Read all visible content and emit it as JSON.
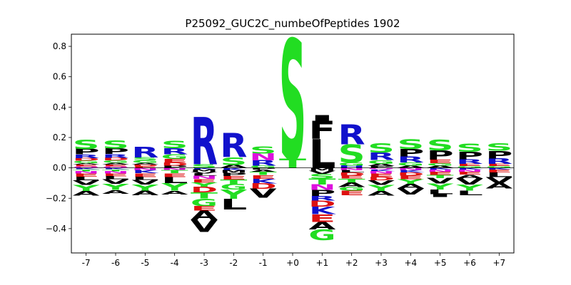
{
  "chart_data": {
    "type": "sequence-logo",
    "title": "P25092_GUC2C_numbeOfPeptides 1902",
    "xlabel": "",
    "ylabel": "",
    "ylim": [
      -0.56,
      0.88
    ],
    "yticks": [
      0.8,
      0.6,
      0.4,
      0.2,
      0.0,
      -0.2,
      -0.4
    ],
    "ytick_labels": [
      "0.8",
      "0.6",
      "0.4",
      "0.2",
      "0.0",
      "−0.2",
      "−0.4"
    ],
    "positions": [
      "-7",
      "-6",
      "-5",
      "-4",
      "-3",
      "-2",
      "-1",
      "+0",
      "+1",
      "+2",
      "+3",
      "+4",
      "+5",
      "+6",
      "+7"
    ],
    "grid": false,
    "colors": {
      "S": "#22dd22",
      "T": "#22dd22",
      "G": "#22dd22",
      "Y": "#22dd22",
      "C": "#22dd22",
      "R": "#1111cc",
      "K": "#1111cc",
      "H": "#1111cc",
      "D": "#dd1111",
      "E": "#dd1111",
      "N": "#dd11dd",
      "Q": "#dd11dd",
      "P": "#000000",
      "A": "#000000",
      "V": "#000000",
      "L": "#000000",
      "I": "#000000",
      "M": "#000000",
      "F": "#000000",
      "W": "#000000"
    },
    "stacks": [
      {
        "pos": "-7",
        "up": [
          [
            "Q",
            0.01
          ],
          [
            "E",
            0.012
          ],
          [
            "A",
            0.01
          ],
          [
            "G",
            0.015
          ],
          [
            "D",
            0.018
          ],
          [
            "R",
            0.025
          ],
          [
            "P",
            0.035
          ],
          [
            "S",
            0.06
          ]
        ],
        "down": [
          [
            "K",
            -0.01
          ],
          [
            "T",
            -0.012
          ],
          [
            "N",
            -0.015
          ],
          [
            "E",
            -0.02
          ],
          [
            "L",
            -0.025
          ],
          [
            "V",
            -0.03
          ],
          [
            "Y",
            -0.04
          ],
          [
            "A",
            -0.03
          ]
        ]
      },
      {
        "pos": "-6",
        "up": [
          [
            "Q",
            0.01
          ],
          [
            "E",
            0.012
          ],
          [
            "A",
            0.012
          ],
          [
            "G",
            0.015
          ],
          [
            "D",
            0.018
          ],
          [
            "R",
            0.025
          ],
          [
            "P",
            0.035
          ],
          [
            "S",
            0.055
          ]
        ],
        "down": [
          [
            "K",
            -0.01
          ],
          [
            "T",
            -0.012
          ],
          [
            "N",
            -0.015
          ],
          [
            "E",
            -0.018
          ],
          [
            "L",
            -0.02
          ],
          [
            "V",
            -0.03
          ],
          [
            "Y",
            -0.04
          ],
          [
            "A",
            -0.025
          ]
        ]
      },
      {
        "pos": "-5",
        "up": [
          [
            "E",
            0.01
          ],
          [
            "D",
            0.012
          ],
          [
            "A",
            0.012
          ],
          [
            "G",
            0.015
          ],
          [
            "S",
            0.02
          ],
          [
            "R",
            0.07
          ]
        ],
        "down": [
          [
            "N",
            -0.015
          ],
          [
            "K",
            -0.02
          ],
          [
            "E",
            -0.025
          ],
          [
            "L",
            -0.02
          ],
          [
            "V",
            -0.03
          ],
          [
            "Y",
            -0.04
          ],
          [
            "A",
            -0.03
          ]
        ]
      },
      {
        "pos": "-4",
        "up": [
          [
            "P",
            0.015
          ],
          [
            "D",
            0.02
          ],
          [
            "E",
            0.025
          ],
          [
            "G",
            0.03
          ],
          [
            "R",
            0.04
          ],
          [
            "S",
            0.05
          ]
        ],
        "down": [
          [
            "N",
            -0.015
          ],
          [
            "T",
            -0.02
          ],
          [
            "E",
            -0.025
          ],
          [
            "L",
            -0.04
          ],
          [
            "Y",
            -0.05
          ],
          [
            "A",
            -0.025
          ]
        ]
      },
      {
        "pos": "-3",
        "up": [
          [
            "S",
            0.025
          ],
          [
            "R",
            0.31
          ]
        ],
        "down": [
          [
            "K",
            -0.01
          ],
          [
            "M",
            -0.015
          ],
          [
            "V",
            -0.012
          ],
          [
            "L",
            -0.015
          ],
          [
            "N",
            -0.02
          ],
          [
            "E",
            -0.025
          ],
          [
            "Y",
            -0.03
          ],
          [
            "D",
            -0.035
          ],
          [
            "T",
            -0.04
          ],
          [
            "G",
            -0.05
          ],
          [
            "E",
            -0.03
          ],
          [
            "A",
            -0.06
          ],
          [
            "V",
            -0.08
          ]
        ]
      },
      {
        "pos": "-2",
        "up": [
          [
            "A",
            0.02
          ],
          [
            "S",
            0.05
          ],
          [
            "R",
            0.16
          ]
        ],
        "down": [
          [
            "K",
            -0.015
          ],
          [
            "M",
            -0.018
          ],
          [
            "P",
            -0.02
          ],
          [
            "E",
            -0.025
          ],
          [
            "T",
            -0.03
          ],
          [
            "G",
            -0.035
          ],
          [
            "Y",
            -0.06
          ],
          [
            "L",
            -0.07
          ]
        ]
      },
      {
        "pos": "-1",
        "up": [
          [
            "G",
            0.015
          ],
          [
            "R",
            0.035
          ],
          [
            "N",
            0.045
          ],
          [
            "S",
            0.045
          ]
        ],
        "down": [
          [
            "P",
            -0.012
          ],
          [
            "A",
            -0.015
          ],
          [
            "T",
            -0.02
          ],
          [
            "E",
            -0.025
          ],
          [
            "K",
            -0.03
          ],
          [
            "D",
            -0.035
          ],
          [
            "V",
            -0.06
          ]
        ]
      },
      {
        "pos": "+0",
        "up": [
          [
            "T",
            0.06
          ],
          [
            "S",
            0.79
          ]
        ],
        "down": []
      },
      {
        "pos": "+1",
        "up": [
          [
            "L",
            0.19
          ],
          [
            "F",
            0.12
          ],
          [
            "I",
            0.035
          ]
        ],
        "down": [
          [
            "M",
            -0.02
          ],
          [
            "V",
            -0.02
          ],
          [
            "S",
            -0.03
          ],
          [
            "T",
            -0.04
          ],
          [
            "N",
            -0.035
          ],
          [
            "P",
            -0.04
          ],
          [
            "R",
            -0.03
          ],
          [
            "D",
            -0.04
          ],
          [
            "K",
            -0.05
          ],
          [
            "E",
            -0.05
          ],
          [
            "A",
            -0.05
          ],
          [
            "G",
            -0.07
          ]
        ]
      },
      {
        "pos": "+2",
        "up": [
          [
            "H",
            0.015
          ],
          [
            "G",
            0.02
          ],
          [
            "S",
            0.12
          ],
          [
            "R",
            0.13
          ]
        ],
        "down": [
          [
            "N",
            -0.015
          ],
          [
            "L",
            -0.015
          ],
          [
            "D",
            -0.02
          ],
          [
            "E",
            -0.02
          ],
          [
            "T",
            -0.025
          ],
          [
            "A",
            -0.03
          ],
          [
            "G",
            -0.025
          ],
          [
            "E",
            -0.03
          ]
        ]
      },
      {
        "pos": "+3",
        "up": [
          [
            "P",
            0.012
          ],
          [
            "A",
            0.015
          ],
          [
            "G",
            0.025
          ],
          [
            "R",
            0.05
          ],
          [
            "S",
            0.06
          ]
        ],
        "down": [
          [
            "Q",
            -0.01
          ],
          [
            "K",
            -0.012
          ],
          [
            "N",
            -0.015
          ],
          [
            "E",
            -0.02
          ],
          [
            "D",
            -0.025
          ],
          [
            "V",
            -0.03
          ],
          [
            "Y",
            -0.04
          ],
          [
            "A",
            -0.03
          ]
        ]
      },
      {
        "pos": "+4",
        "up": [
          [
            "A",
            0.015
          ],
          [
            "G",
            0.02
          ],
          [
            "R",
            0.04
          ],
          [
            "P",
            0.05
          ],
          [
            "S",
            0.065
          ]
        ],
        "down": [
          [
            "N",
            -0.015
          ],
          [
            "K",
            -0.015
          ],
          [
            "D",
            -0.02
          ],
          [
            "E",
            -0.025
          ],
          [
            "Y",
            -0.03
          ],
          [
            "A",
            -0.03
          ],
          [
            "V",
            -0.04
          ]
        ]
      },
      {
        "pos": "+5",
        "up": [
          [
            "A",
            0.015
          ],
          [
            "G",
            0.015
          ],
          [
            "E",
            0.025
          ],
          [
            "P",
            0.06
          ],
          [
            "S",
            0.07
          ]
        ],
        "down": [
          [
            "K",
            -0.012
          ],
          [
            "N",
            -0.015
          ],
          [
            "E",
            -0.02
          ],
          [
            "T",
            -0.02
          ],
          [
            "V",
            -0.035
          ],
          [
            "Y",
            -0.04
          ],
          [
            "L",
            -0.03
          ],
          [
            "I",
            -0.02
          ]
        ]
      },
      {
        "pos": "+6",
        "up": [
          [
            "G",
            0.012
          ],
          [
            "E",
            0.015
          ],
          [
            "R",
            0.03
          ],
          [
            "P",
            0.05
          ],
          [
            "S",
            0.055
          ]
        ],
        "down": [
          [
            "K",
            -0.012
          ],
          [
            "N",
            -0.015
          ],
          [
            "E",
            -0.018
          ],
          [
            "A",
            -0.025
          ],
          [
            "V",
            -0.04
          ],
          [
            "Y",
            -0.04
          ],
          [
            "L",
            -0.03
          ]
        ]
      },
      {
        "pos": "+7",
        "up": [
          [
            "G",
            0.012
          ],
          [
            "E",
            0.015
          ],
          [
            "R",
            0.035
          ],
          [
            "P",
            0.05
          ],
          [
            "S",
            0.05
          ]
        ],
        "down": [
          [
            "K",
            -0.012
          ],
          [
            "E",
            -0.018
          ],
          [
            "L",
            -0.03
          ],
          [
            "V",
            -0.04
          ],
          [
            "A",
            -0.035
          ]
        ]
      }
    ]
  }
}
